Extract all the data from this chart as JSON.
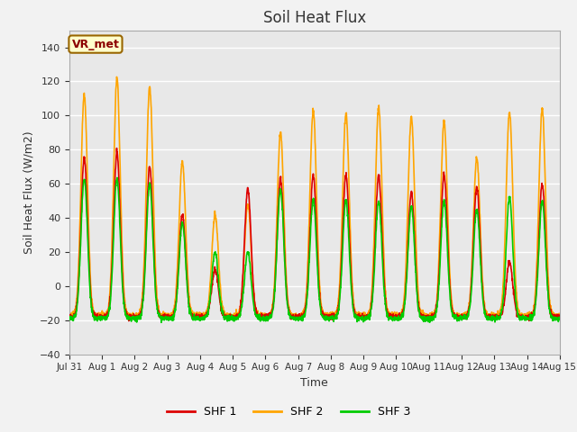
{
  "title": "Soil Heat Flux",
  "xlabel": "Time",
  "ylabel": "Soil Heat Flux (W/m2)",
  "ylim": [
    -40,
    150
  ],
  "yticks": [
    -40,
    -20,
    0,
    20,
    40,
    60,
    80,
    100,
    120,
    140
  ],
  "background_color": "#e8e8e8",
  "fig_bg_color": "#f2f2f2",
  "shf1_color": "#dd0000",
  "shf2_color": "#ffa500",
  "shf3_color": "#00cc00",
  "line_width": 1.2,
  "annotation_text": "VR_met",
  "annotation_bg": "#ffffcc",
  "annotation_border": "#996600",
  "legend_entries": [
    "SHF 1",
    "SHF 2",
    "SHF 3"
  ],
  "tick_labels": [
    "Jul 31",
    "Aug 1",
    "Aug 2",
    "Aug 3",
    "Aug 4",
    "Aug 5",
    "Aug 6",
    "Aug 7",
    "Aug 8",
    "Aug 9",
    "Aug 10",
    "Aug 11",
    "Aug 12",
    "Aug 13",
    "Aug 14",
    "Aug 15"
  ],
  "daily_peaks_shf1": [
    75,
    78,
    70,
    42,
    10,
    57,
    63,
    65,
    65,
    65,
    55,
    65,
    58,
    14,
    60
  ],
  "daily_peaks_shf2": [
    112,
    122,
    117,
    73,
    42,
    48,
    90,
    103,
    101,
    105,
    99,
    97,
    75,
    102,
    104
  ],
  "daily_peaks_shf3": [
    63,
    63,
    60,
    37,
    20,
    20,
    57,
    51,
    50,
    50,
    47,
    50,
    45,
    52,
    50
  ],
  "night_val_shf1": -18,
  "night_val_shf2": -17,
  "night_val_shf3": -19,
  "deep_night_shf1": -22,
  "deep_night_shf2": -20,
  "deep_night_shf3": -22
}
